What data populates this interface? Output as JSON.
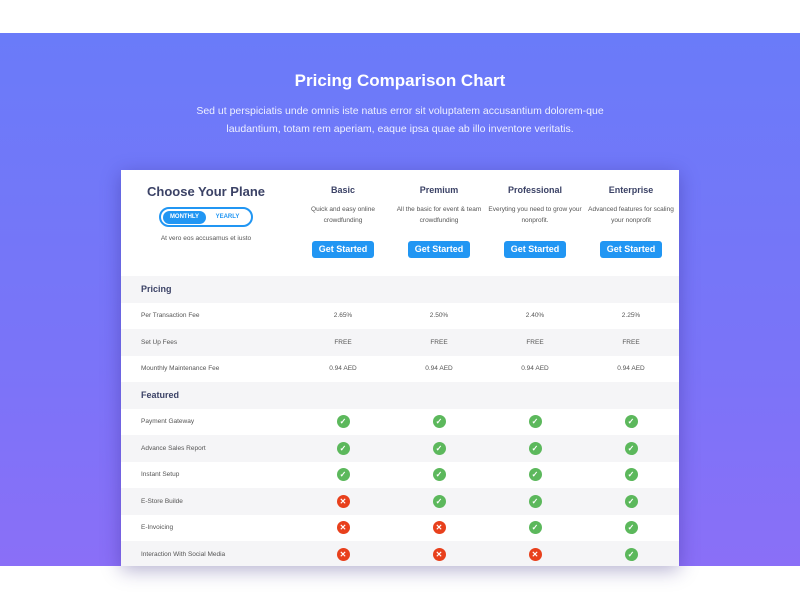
{
  "title": "Pricing Comparison Chart",
  "subtitle": "Sed ut perspiciatis unde omnis iste natus error sit voluptatem accusantium dolorem-que laudantium, totam rem aperiam, eaque ipsa quae ab illo inventore veritatis.",
  "chooser": {
    "heading": "Choose Your Plane",
    "monthly": "MONTHLY",
    "yearly": "YEARLY",
    "selected": "MONTHLY",
    "note": "At vero eos accusamus et iusto"
  },
  "plans": [
    {
      "name": "Basic",
      "desc": "Quick and easy online crowdfunding",
      "cta": "Get Started"
    },
    {
      "name": "Premium",
      "desc": "All the basic for event & team crowdfunding",
      "cta": "Get Started"
    },
    {
      "name": "Professional",
      "desc": "Everyting you need to grow your nonprofit.",
      "cta": "Get Started"
    },
    {
      "name": "Enterprise",
      "desc": "Advanced features for scaling your nonprofit",
      "cta": "Get Started"
    }
  ],
  "colors": {
    "accent": "#2196f3",
    "check": "#5cb85c",
    "cross": "#e8401c",
    "bg_top": "#6a7bf9",
    "bg_bottom": "#8a6ff7"
  },
  "rows": [
    {
      "type": "section",
      "label": "Pricing"
    },
    {
      "label": "Per Transaction Fee",
      "values": [
        "2.65%",
        "2.50%",
        "2.40%",
        "2.25%"
      ]
    },
    {
      "label": "Set Up Fees",
      "values": [
        "FREE",
        "FREE",
        "FREE",
        "FREE"
      ]
    },
    {
      "label": "Mounthly Maintenance Fee",
      "values": [
        "0.94 AED",
        "0.94 AED",
        "0.94 AED",
        "0.94 AED"
      ]
    },
    {
      "type": "section",
      "label": "Featured"
    },
    {
      "label": "Payment Gateway",
      "checks": [
        true,
        true,
        true,
        true
      ]
    },
    {
      "label": "Advance Sales Report",
      "checks": [
        true,
        true,
        true,
        true
      ]
    },
    {
      "label": "Instant Setup",
      "checks": [
        true,
        true,
        true,
        true
      ]
    },
    {
      "label": "E-Store Builde",
      "checks": [
        false,
        true,
        true,
        true
      ]
    },
    {
      "label": "E-Invoicing",
      "checks": [
        false,
        false,
        true,
        true
      ]
    },
    {
      "label": "Interaction With Social Media",
      "checks": [
        false,
        false,
        false,
        true
      ]
    }
  ]
}
